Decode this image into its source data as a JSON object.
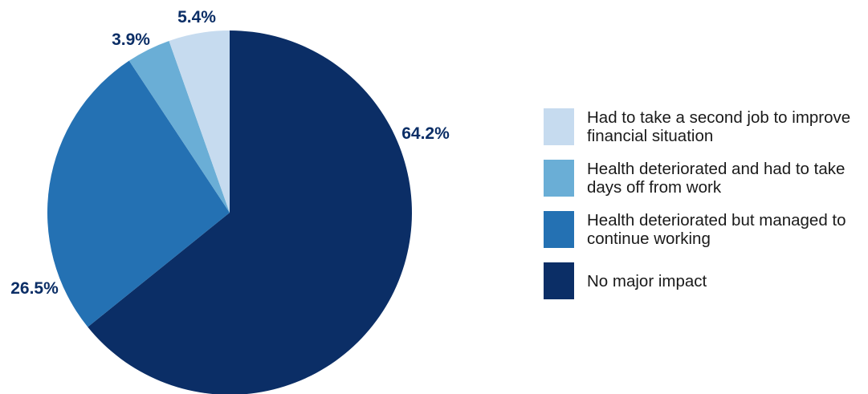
{
  "chart_data": {
    "type": "pie",
    "title": "",
    "slices": [
      {
        "label": "No major impact",
        "value": 64.2,
        "value_label": "64.2%",
        "color": "#0b2e66"
      },
      {
        "label": "Health deteriorated but managed to continue working",
        "value": 26.5,
        "value_label": "26.5%",
        "color": "#2471b3"
      },
      {
        "label": "Health deteriorated and had to take days off from work",
        "value": 3.9,
        "value_label": "3.9%",
        "color": "#6aaed6"
      },
      {
        "label": "Had to take a second job to improve financial situation",
        "value": 5.4,
        "value_label": "5.4%",
        "color": "#c6dbef"
      }
    ],
    "legend_placement": "right",
    "legend_order": [
      "Had to take a second job to improve financial situation",
      "Health deteriorated and had to take days off from work",
      "Health deteriorated but managed to continue working",
      "No major impact"
    ]
  }
}
